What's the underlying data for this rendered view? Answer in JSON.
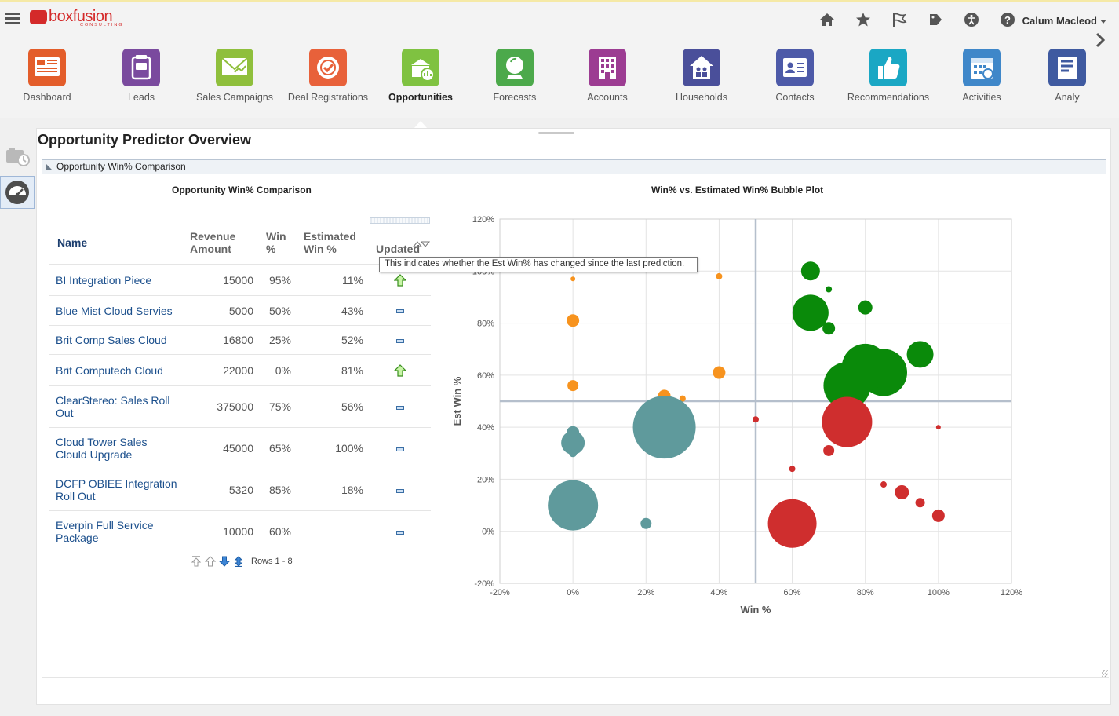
{
  "header": {
    "logo_text": "boxfusion",
    "logo_sub": "CONSULTING",
    "user_name": "Calum Macleod",
    "icons": [
      "home-icon",
      "star-icon",
      "flag-icon",
      "tag-icon",
      "accessibility-icon",
      "help-icon"
    ]
  },
  "nav": {
    "items": [
      {
        "label": "Dashboard",
        "icon": "dashboard-icon",
        "color": "#e35d2a"
      },
      {
        "label": "Leads",
        "icon": "leads-icon",
        "color": "#7a4a9e"
      },
      {
        "label": "Sales Campaigns",
        "icon": "campaigns-icon",
        "color": "#8fbf3c"
      },
      {
        "label": "Deal Registrations",
        "icon": "deal-registrations-icon",
        "color": "#e8613a"
      },
      {
        "label": "Opportunities",
        "icon": "opportunities-icon",
        "color": "#7fc241"
      },
      {
        "label": "Forecasts",
        "icon": "forecasts-icon",
        "color": "#4ca94b"
      },
      {
        "label": "Accounts",
        "icon": "accounts-icon",
        "color": "#9c3c92"
      },
      {
        "label": "Households",
        "icon": "households-icon",
        "color": "#4a4f9a"
      },
      {
        "label": "Contacts",
        "icon": "contacts-icon",
        "color": "#4d5aa8"
      },
      {
        "label": "Recommendations",
        "icon": "recommendations-icon",
        "color": "#1aa7c4"
      },
      {
        "label": "Activities",
        "icon": "activities-icon",
        "color": "#3f87c9"
      },
      {
        "label": "Analy",
        "icon": "analytics-icon",
        "color": "#3f5aa0"
      }
    ],
    "active_index": 4
  },
  "page": {
    "title": "Opportunity Predictor Overview",
    "section_title": "Opportunity Win% Comparison",
    "table_title": "Opportunity Win% Comparison",
    "chart_title": "Win% vs. Estimated Win% Bubble Plot"
  },
  "table": {
    "columns": {
      "name": "Name",
      "revenue": "Revenue Amount",
      "win": "Win %",
      "est": "Estimated Win %",
      "updated": "Updated"
    },
    "tooltip": "This indicates whether the Est Win% has changed since the last prediction.",
    "rows": [
      {
        "name": "BI Integration Piece",
        "revenue": "15000",
        "win": "95%",
        "est": "11%",
        "updated": "up"
      },
      {
        "name": "Blue Mist Cloud Servies",
        "revenue": "5000",
        "win": "50%",
        "est": "43%",
        "updated": "same"
      },
      {
        "name": "Brit Comp Sales Cloud",
        "revenue": "16800",
        "win": "25%",
        "est": "52%",
        "updated": "same"
      },
      {
        "name": "Brit Computech Cloud",
        "revenue": "22000",
        "win": "0%",
        "est": "81%",
        "updated": "up"
      },
      {
        "name": "ClearStereo: Sales Roll Out",
        "revenue": "375000",
        "win": "75%",
        "est": "56%",
        "updated": "same"
      },
      {
        "name": "Cloud Tower Sales Clould Upgrade",
        "revenue": "45000",
        "win": "65%",
        "est": "100%",
        "updated": "same"
      },
      {
        "name": "DCFP OBIEE Integration Roll Out",
        "revenue": "5320",
        "win": "85%",
        "est": "18%",
        "updated": "same"
      },
      {
        "name": "Everpin Full Service Package",
        "revenue": "10000",
        "win": "60%",
        "est": "",
        "updated": "same"
      }
    ],
    "pager_text": "Rows 1 - 8"
  },
  "chart_data": {
    "type": "scatter",
    "title": "Win% vs. Estimated Win% Bubble Plot",
    "xlabel": "Win %",
    "ylabel": "Est Win %",
    "xlim": [
      -20,
      120
    ],
    "ylim": [
      -20,
      120
    ],
    "x_ticks": [
      "-20%",
      "0%",
      "20%",
      "40%",
      "60%",
      "80%",
      "100%",
      "120%"
    ],
    "y_ticks": [
      "-20%",
      "0%",
      "20%",
      "40%",
      "60%",
      "80%",
      "100%",
      "120%"
    ],
    "reference_lines": {
      "x": 50,
      "y": 50
    },
    "grid": true,
    "colors": {
      "green": "#0a8a0a",
      "orange": "#f7931e",
      "teal": "#5f9a9c",
      "red": "#cf2e2e"
    },
    "points": [
      {
        "x": 0,
        "y": 97,
        "r": 3,
        "color": "orange"
      },
      {
        "x": 40,
        "y": 98,
        "r": 4,
        "color": "orange"
      },
      {
        "x": 0,
        "y": 81,
        "r": 8,
        "color": "orange"
      },
      {
        "x": 0,
        "y": 56,
        "r": 7,
        "color": "orange"
      },
      {
        "x": 40,
        "y": 61,
        "r": 8,
        "color": "orange"
      },
      {
        "x": 25,
        "y": 52,
        "r": 8,
        "color": "orange"
      },
      {
        "x": 30,
        "y": 51,
        "r": 4,
        "color": "orange"
      },
      {
        "x": 0,
        "y": 38,
        "r": 8,
        "color": "teal"
      },
      {
        "x": 0,
        "y": 34,
        "r": 15,
        "color": "teal"
      },
      {
        "x": 0,
        "y": 30,
        "r": 5,
        "color": "teal"
      },
      {
        "x": 25,
        "y": 40,
        "r": 40,
        "color": "teal"
      },
      {
        "x": 0,
        "y": 10,
        "r": 32,
        "color": "teal"
      },
      {
        "x": 20,
        "y": 3,
        "r": 7,
        "color": "teal"
      },
      {
        "x": 65,
        "y": 100,
        "r": 12,
        "color": "green"
      },
      {
        "x": 70,
        "y": 93,
        "r": 4,
        "color": "green"
      },
      {
        "x": 65,
        "y": 84,
        "r": 23,
        "color": "green"
      },
      {
        "x": 70,
        "y": 78,
        "r": 8,
        "color": "green"
      },
      {
        "x": 80,
        "y": 86,
        "r": 9,
        "color": "green"
      },
      {
        "x": 95,
        "y": 68,
        "r": 17,
        "color": "green"
      },
      {
        "x": 85,
        "y": 61,
        "r": 30,
        "color": "green"
      },
      {
        "x": 80,
        "y": 63,
        "r": 30,
        "color": "green"
      },
      {
        "x": 75,
        "y": 56,
        "r": 30,
        "color": "green"
      },
      {
        "x": 50,
        "y": 43,
        "r": 4,
        "color": "red"
      },
      {
        "x": 75,
        "y": 42,
        "r": 32,
        "color": "red"
      },
      {
        "x": 70,
        "y": 31,
        "r": 7,
        "color": "red"
      },
      {
        "x": 100,
        "y": 40,
        "r": 3,
        "color": "red"
      },
      {
        "x": 60,
        "y": 24,
        "r": 4,
        "color": "red"
      },
      {
        "x": 85,
        "y": 18,
        "r": 4,
        "color": "red"
      },
      {
        "x": 90,
        "y": 15,
        "r": 9,
        "color": "red"
      },
      {
        "x": 95,
        "y": 11,
        "r": 6,
        "color": "red"
      },
      {
        "x": 100,
        "y": 6,
        "r": 8,
        "color": "red"
      },
      {
        "x": 60,
        "y": 3,
        "r": 31,
        "color": "red"
      }
    ]
  }
}
